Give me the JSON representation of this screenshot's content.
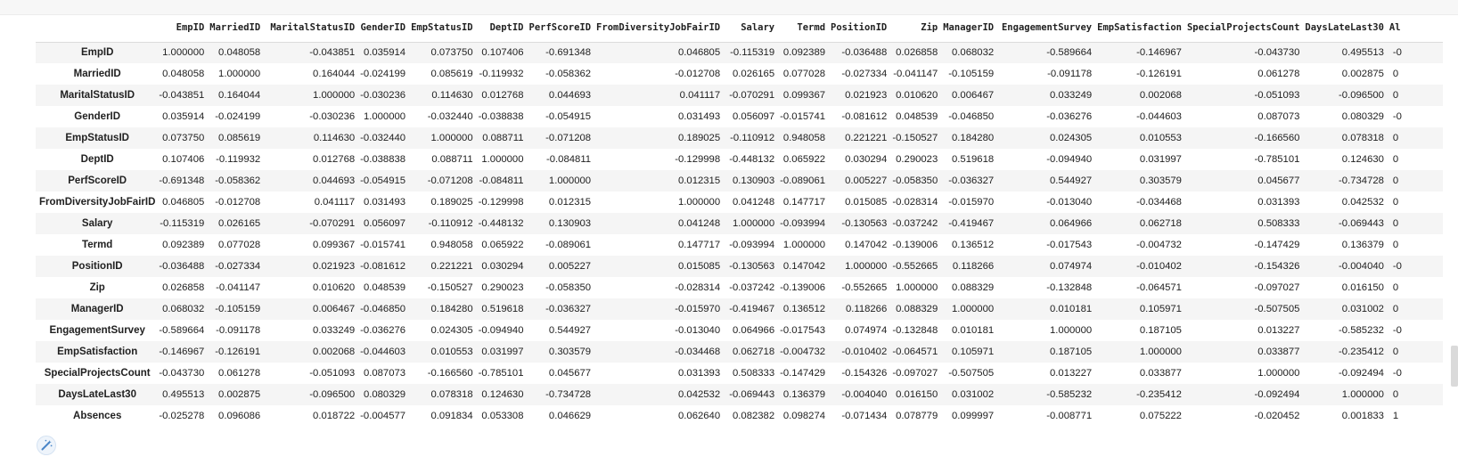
{
  "table": {
    "columns": [
      "EmpID",
      "MarriedID",
      "MaritalStatusID",
      "GenderID",
      "EmpStatusID",
      "DeptID",
      "PerfScoreID",
      "FromDiversityJobFairID",
      "Salary",
      "Termd",
      "PositionID",
      "Zip",
      "ManagerID",
      "EngagementSurvey",
      "EmpSatisfaction",
      "SpecialProjectsCount",
      "DaysLateLast30",
      "Absences"
    ],
    "visible_header_cutoff_text": "Al",
    "rows": [
      {
        "label": "EmpID",
        "values": [
          "1.000000",
          "0.048058",
          "-0.043851",
          "0.035914",
          "0.073750",
          "0.107406",
          "-0.691348",
          "0.046805",
          "-0.115319",
          "0.092389",
          "-0.036488",
          "0.026858",
          "0.068032",
          "-0.589664",
          "-0.146967",
          "-0.043730",
          "0.495513",
          "-0"
        ]
      },
      {
        "label": "MarriedID",
        "values": [
          "0.048058",
          "1.000000",
          "0.164044",
          "-0.024199",
          "0.085619",
          "-0.119932",
          "-0.058362",
          "-0.012708",
          "0.026165",
          "0.077028",
          "-0.027334",
          "-0.041147",
          "-0.105159",
          "-0.091178",
          "-0.126191",
          "0.061278",
          "0.002875",
          "0"
        ]
      },
      {
        "label": "MaritalStatusID",
        "values": [
          "-0.043851",
          "0.164044",
          "1.000000",
          "-0.030236",
          "0.114630",
          "0.012768",
          "0.044693",
          "0.041117",
          "-0.070291",
          "0.099367",
          "0.021923",
          "0.010620",
          "0.006467",
          "0.033249",
          "0.002068",
          "-0.051093",
          "-0.096500",
          "0"
        ]
      },
      {
        "label": "GenderID",
        "values": [
          "0.035914",
          "-0.024199",
          "-0.030236",
          "1.000000",
          "-0.032440",
          "-0.038838",
          "-0.054915",
          "0.031493",
          "0.056097",
          "-0.015741",
          "-0.081612",
          "0.048539",
          "-0.046850",
          "-0.036276",
          "-0.044603",
          "0.087073",
          "0.080329",
          "-0"
        ]
      },
      {
        "label": "EmpStatusID",
        "values": [
          "0.073750",
          "0.085619",
          "0.114630",
          "-0.032440",
          "1.000000",
          "0.088711",
          "-0.071208",
          "0.189025",
          "-0.110912",
          "0.948058",
          "0.221221",
          "-0.150527",
          "0.184280",
          "0.024305",
          "0.010553",
          "-0.166560",
          "0.078318",
          "0"
        ]
      },
      {
        "label": "DeptID",
        "values": [
          "0.107406",
          "-0.119932",
          "0.012768",
          "-0.038838",
          "0.088711",
          "1.000000",
          "-0.084811",
          "-0.129998",
          "-0.448132",
          "0.065922",
          "0.030294",
          "0.290023",
          "0.519618",
          "-0.094940",
          "0.031997",
          "-0.785101",
          "0.124630",
          "0"
        ]
      },
      {
        "label": "PerfScoreID",
        "values": [
          "-0.691348",
          "-0.058362",
          "0.044693",
          "-0.054915",
          "-0.071208",
          "-0.084811",
          "1.000000",
          "0.012315",
          "0.130903",
          "-0.089061",
          "0.005227",
          "-0.058350",
          "-0.036327",
          "0.544927",
          "0.303579",
          "0.045677",
          "-0.734728",
          "0"
        ]
      },
      {
        "label": "FromDiversityJobFairID",
        "values": [
          "0.046805",
          "-0.012708",
          "0.041117",
          "0.031493",
          "0.189025",
          "-0.129998",
          "0.012315",
          "1.000000",
          "0.041248",
          "0.147717",
          "0.015085",
          "-0.028314",
          "-0.015970",
          "-0.013040",
          "-0.034468",
          "0.031393",
          "0.042532",
          "0"
        ]
      },
      {
        "label": "Salary",
        "values": [
          "-0.115319",
          "0.026165",
          "-0.070291",
          "0.056097",
          "-0.110912",
          "-0.448132",
          "0.130903",
          "0.041248",
          "1.000000",
          "-0.093994",
          "-0.130563",
          "-0.037242",
          "-0.419467",
          "0.064966",
          "0.062718",
          "0.508333",
          "-0.069443",
          "0"
        ]
      },
      {
        "label": "Termd",
        "values": [
          "0.092389",
          "0.077028",
          "0.099367",
          "-0.015741",
          "0.948058",
          "0.065922",
          "-0.089061",
          "0.147717",
          "-0.093994",
          "1.000000",
          "0.147042",
          "-0.139006",
          "0.136512",
          "-0.017543",
          "-0.004732",
          "-0.147429",
          "0.136379",
          "0"
        ]
      },
      {
        "label": "PositionID",
        "values": [
          "-0.036488",
          "-0.027334",
          "0.021923",
          "-0.081612",
          "0.221221",
          "0.030294",
          "0.005227",
          "0.015085",
          "-0.130563",
          "0.147042",
          "1.000000",
          "-0.552665",
          "0.118266",
          "0.074974",
          "-0.010402",
          "-0.154326",
          "-0.004040",
          "-0"
        ]
      },
      {
        "label": "Zip",
        "values": [
          "0.026858",
          "-0.041147",
          "0.010620",
          "0.048539",
          "-0.150527",
          "0.290023",
          "-0.058350",
          "-0.028314",
          "-0.037242",
          "-0.139006",
          "-0.552665",
          "1.000000",
          "0.088329",
          "-0.132848",
          "-0.064571",
          "-0.097027",
          "0.016150",
          "0"
        ]
      },
      {
        "label": "ManagerID",
        "values": [
          "0.068032",
          "-0.105159",
          "0.006467",
          "-0.046850",
          "0.184280",
          "0.519618",
          "-0.036327",
          "-0.015970",
          "-0.419467",
          "0.136512",
          "0.118266",
          "0.088329",
          "1.000000",
          "0.010181",
          "0.105971",
          "-0.507505",
          "0.031002",
          "0"
        ]
      },
      {
        "label": "EngagementSurvey",
        "values": [
          "-0.589664",
          "-0.091178",
          "0.033249",
          "-0.036276",
          "0.024305",
          "-0.094940",
          "0.544927",
          "-0.013040",
          "0.064966",
          "-0.017543",
          "0.074974",
          "-0.132848",
          "0.010181",
          "1.000000",
          "0.187105",
          "0.013227",
          "-0.585232",
          "-0"
        ]
      },
      {
        "label": "EmpSatisfaction",
        "values": [
          "-0.146967",
          "-0.126191",
          "0.002068",
          "-0.044603",
          "0.010553",
          "0.031997",
          "0.303579",
          "-0.034468",
          "0.062718",
          "-0.004732",
          "-0.010402",
          "-0.064571",
          "0.105971",
          "0.187105",
          "1.000000",
          "0.033877",
          "-0.235412",
          "0"
        ]
      },
      {
        "label": "SpecialProjectsCount",
        "values": [
          "-0.043730",
          "0.061278",
          "-0.051093",
          "0.087073",
          "-0.166560",
          "-0.785101",
          "0.045677",
          "0.031393",
          "0.508333",
          "-0.147429",
          "-0.154326",
          "-0.097027",
          "-0.507505",
          "0.013227",
          "0.033877",
          "1.000000",
          "-0.092494",
          "-0"
        ]
      },
      {
        "label": "DaysLateLast30",
        "values": [
          "0.495513",
          "0.002875",
          "-0.096500",
          "0.080329",
          "0.078318",
          "0.124630",
          "-0.734728",
          "0.042532",
          "-0.069443",
          "0.136379",
          "-0.004040",
          "0.016150",
          "0.031002",
          "-0.585232",
          "-0.235412",
          "-0.092494",
          "1.000000",
          "0"
        ]
      },
      {
        "label": "Absences",
        "values": [
          "-0.025278",
          "0.096086",
          "0.018722",
          "-0.004577",
          "0.091834",
          "0.053308",
          "0.046629",
          "0.062640",
          "0.082382",
          "0.098274",
          "-0.071434",
          "0.078779",
          "0.099997",
          "-0.008771",
          "0.075222",
          "-0.020452",
          "0.001833",
          "1"
        ]
      }
    ]
  },
  "icons": {
    "magic_button": "magic-wand-icon"
  },
  "colors": {
    "stripe": "#f5f5f5",
    "icon_accent": "#4a86c8"
  }
}
